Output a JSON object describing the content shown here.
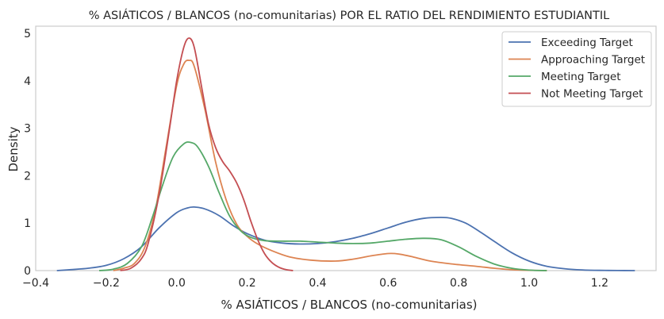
{
  "chart_data": {
    "type": "area",
    "title": "% ASIÁTICOS / BLANCOS (no-comunitarias) POR EL RATIO DEL RENDIMIENTO ESTUDIANTIL",
    "xlabel": "% ASIÁTICOS / BLANCOS (no-comunitarias)",
    "ylabel": "Density",
    "xlim": [
      -0.4,
      1.36
    ],
    "ylim": [
      0,
      5.15
    ],
    "xticks": [
      -0.4,
      -0.2,
      0.0,
      0.2,
      0.4,
      0.6,
      0.8,
      1.0,
      1.2
    ],
    "xtick_labels": [
      "−0.4",
      "−0.2",
      "0.0",
      "0.2",
      "0.4",
      "0.6",
      "0.8",
      "1.0",
      "1.2"
    ],
    "yticks": [
      0,
      1,
      2,
      3,
      4,
      5
    ],
    "ytick_labels": [
      "0",
      "1",
      "2",
      "3",
      "4",
      "5"
    ],
    "grid": false,
    "legend_position": "top-right",
    "series": [
      {
        "name": "Exceeding Target",
        "color": "#4c72b0",
        "x": [
          -0.34,
          -0.3,
          -0.25,
          -0.2,
          -0.15,
          -0.1,
          -0.05,
          0.0,
          0.03,
          0.05,
          0.08,
          0.12,
          0.16,
          0.2,
          0.25,
          0.3,
          0.35,
          0.4,
          0.45,
          0.5,
          0.55,
          0.6,
          0.65,
          0.7,
          0.75,
          0.78,
          0.82,
          0.86,
          0.9,
          0.95,
          1.0,
          1.05,
          1.1,
          1.15,
          1.2,
          1.25,
          1.3
        ],
        "y": [
          0.0,
          0.02,
          0.05,
          0.11,
          0.25,
          0.5,
          0.9,
          1.22,
          1.32,
          1.34,
          1.3,
          1.16,
          0.95,
          0.78,
          0.64,
          0.58,
          0.56,
          0.57,
          0.61,
          0.68,
          0.78,
          0.9,
          1.02,
          1.1,
          1.12,
          1.1,
          1.0,
          0.82,
          0.62,
          0.38,
          0.2,
          0.09,
          0.04,
          0.015,
          0.005,
          0.002,
          0.0
        ]
      },
      {
        "name": "Approaching Target",
        "color": "#dd8452",
        "x": [
          -0.18,
          -0.15,
          -0.12,
          -0.09,
          -0.06,
          -0.03,
          0.0,
          0.02,
          0.035,
          0.05,
          0.08,
          0.11,
          0.14,
          0.17,
          0.2,
          0.23,
          0.27,
          0.32,
          0.38,
          0.45,
          0.5,
          0.55,
          0.6,
          0.63,
          0.67,
          0.72,
          0.78,
          0.85,
          0.9,
          0.95,
          1.0,
          1.05
        ],
        "y": [
          0.0,
          0.05,
          0.15,
          0.5,
          1.3,
          2.6,
          3.9,
          4.35,
          4.43,
          4.3,
          3.4,
          2.3,
          1.5,
          0.98,
          0.72,
          0.56,
          0.42,
          0.29,
          0.22,
          0.2,
          0.24,
          0.31,
          0.36,
          0.35,
          0.29,
          0.2,
          0.14,
          0.09,
          0.05,
          0.02,
          0.006,
          0.0
        ]
      },
      {
        "name": "Meeting Target",
        "color": "#55a868",
        "x": [
          -0.22,
          -0.18,
          -0.14,
          -0.1,
          -0.07,
          -0.04,
          -0.01,
          0.02,
          0.04,
          0.06,
          0.09,
          0.12,
          0.15,
          0.18,
          0.21,
          0.25,
          0.3,
          0.35,
          0.4,
          0.45,
          0.5,
          0.55,
          0.6,
          0.65,
          0.7,
          0.75,
          0.8,
          0.85,
          0.9,
          0.95,
          1.0,
          1.05
        ],
        "y": [
          0.0,
          0.03,
          0.15,
          0.5,
          1.1,
          1.8,
          2.4,
          2.67,
          2.7,
          2.6,
          2.2,
          1.65,
          1.15,
          0.85,
          0.7,
          0.63,
          0.62,
          0.62,
          0.6,
          0.58,
          0.57,
          0.58,
          0.62,
          0.66,
          0.68,
          0.65,
          0.5,
          0.3,
          0.14,
          0.05,
          0.01,
          0.0
        ]
      },
      {
        "name": "Not Meeting Target",
        "color": "#c44e52",
        "x": [
          -0.16,
          -0.13,
          -0.1,
          -0.08,
          -0.05,
          -0.02,
          0.0,
          0.02,
          0.035,
          0.05,
          0.07,
          0.09,
          0.11,
          0.13,
          0.15,
          0.17,
          0.19,
          0.21,
          0.23,
          0.25,
          0.27,
          0.29,
          0.31,
          0.33
        ],
        "y": [
          0.0,
          0.05,
          0.25,
          0.6,
          1.6,
          3.0,
          4.0,
          4.7,
          4.9,
          4.7,
          3.9,
          3.1,
          2.6,
          2.3,
          2.1,
          1.85,
          1.5,
          1.05,
          0.65,
          0.35,
          0.17,
          0.07,
          0.02,
          0.0
        ]
      }
    ]
  }
}
